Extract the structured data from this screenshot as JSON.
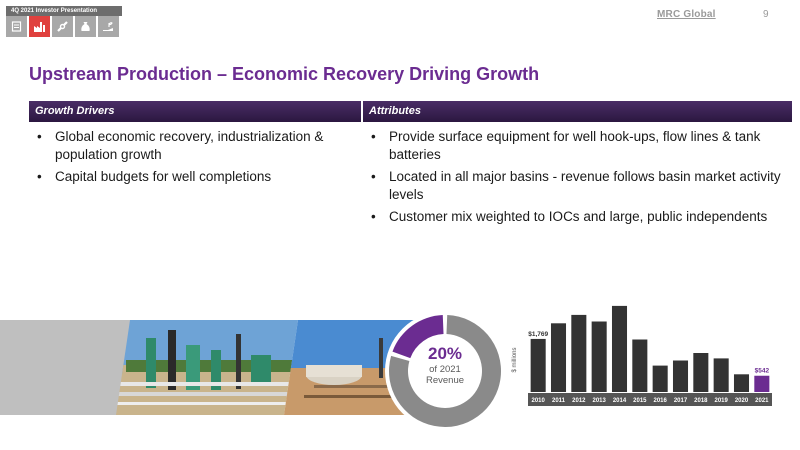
{
  "header": {
    "badge": "4Q 2021 Investor Presentation",
    "tabs": [
      {
        "icon": "doc-icon",
        "active": false
      },
      {
        "icon": "industry-icon",
        "active": true
      },
      {
        "icon": "pipe-icon",
        "active": false
      },
      {
        "icon": "money-bag-icon",
        "active": false
      },
      {
        "icon": "hand-plant-icon",
        "active": false
      }
    ],
    "brand": "MRC Global",
    "page_number": "9"
  },
  "title": "Upstream Production – Economic Recovery Driving Growth",
  "table": {
    "headers": [
      "Growth Drivers",
      "Attributes"
    ],
    "growth_drivers": [
      "Global economic recovery, industrialization & population growth",
      "Capital budgets for well completions"
    ],
    "attributes": [
      "Provide surface equipment for well hook-ups, flow lines & tank batteries",
      "Located in all major basins - revenue follows basin market activity levels",
      "Customer mix weighted to IOCs and large, public independents"
    ]
  },
  "donut": {
    "percent_label": "20%",
    "sub_label_1": "of 2021",
    "sub_label_2": "Revenue",
    "share": 0.2,
    "colors": {
      "highlight": "#6b2c91",
      "rest": "#8a8a8a"
    }
  },
  "chart_data": {
    "type": "bar",
    "categories": [
      "2010",
      "2011",
      "2012",
      "2013",
      "2014",
      "2015",
      "2016",
      "2017",
      "2018",
      "2019",
      "2020",
      "2021"
    ],
    "values": [
      1769,
      2290,
      2570,
      2350,
      2870,
      1750,
      880,
      1050,
      1300,
      1120,
      590,
      542
    ],
    "data_labels": [
      {
        "index": 0,
        "text": "$1,769"
      },
      {
        "index": 11,
        "text": "$542"
      }
    ],
    "ylabel": "$ millions",
    "ylim": [
      0,
      3000
    ],
    "colors": {
      "bar": "#333333",
      "highlight": "#6b2c91",
      "axis_band": "#555555"
    }
  }
}
